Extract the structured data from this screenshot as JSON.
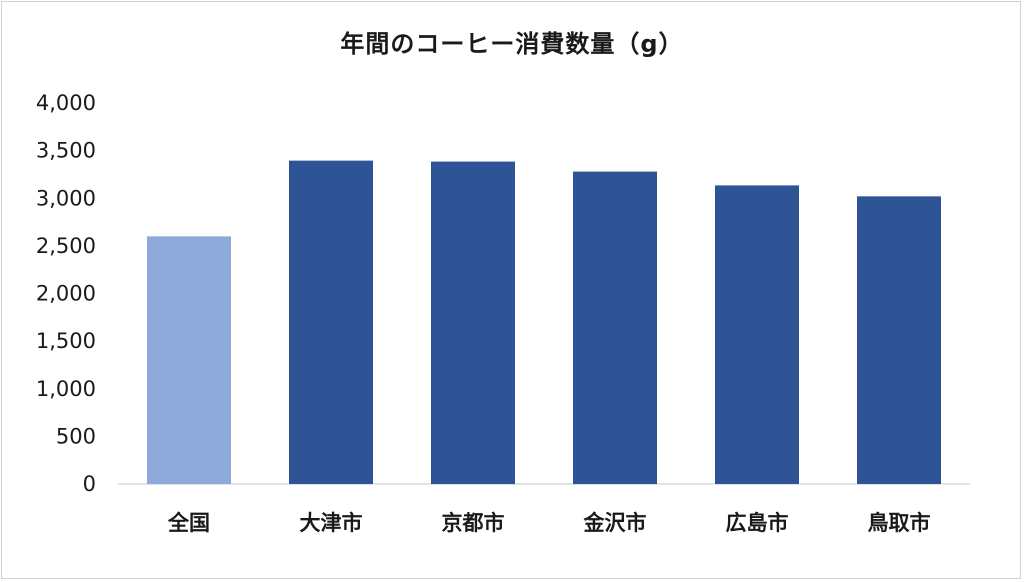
{
  "chart_data": {
    "type": "bar",
    "title": "年間のコーヒー消費数量（g）",
    "categories": [
      "全国",
      "大津市",
      "京都市",
      "金沢市",
      "広島市",
      "鳥取市"
    ],
    "values": [
      2600,
      3395,
      3385,
      3280,
      3135,
      3020
    ],
    "colors": [
      "#8eaadb",
      "#2f5496",
      "#2f5496",
      "#2f5496",
      "#2f5496",
      "#2f5496"
    ],
    "ylim": [
      0,
      4000
    ],
    "yticks": [
      0,
      500,
      1000,
      1500,
      2000,
      2500,
      3000,
      3500,
      4000
    ],
    "ytick_labels": [
      "0",
      "500",
      "1,000",
      "1,500",
      "2,000",
      "2,500",
      "3,000",
      "3,500",
      "4,000"
    ],
    "grid": false,
    "legend": "none"
  }
}
